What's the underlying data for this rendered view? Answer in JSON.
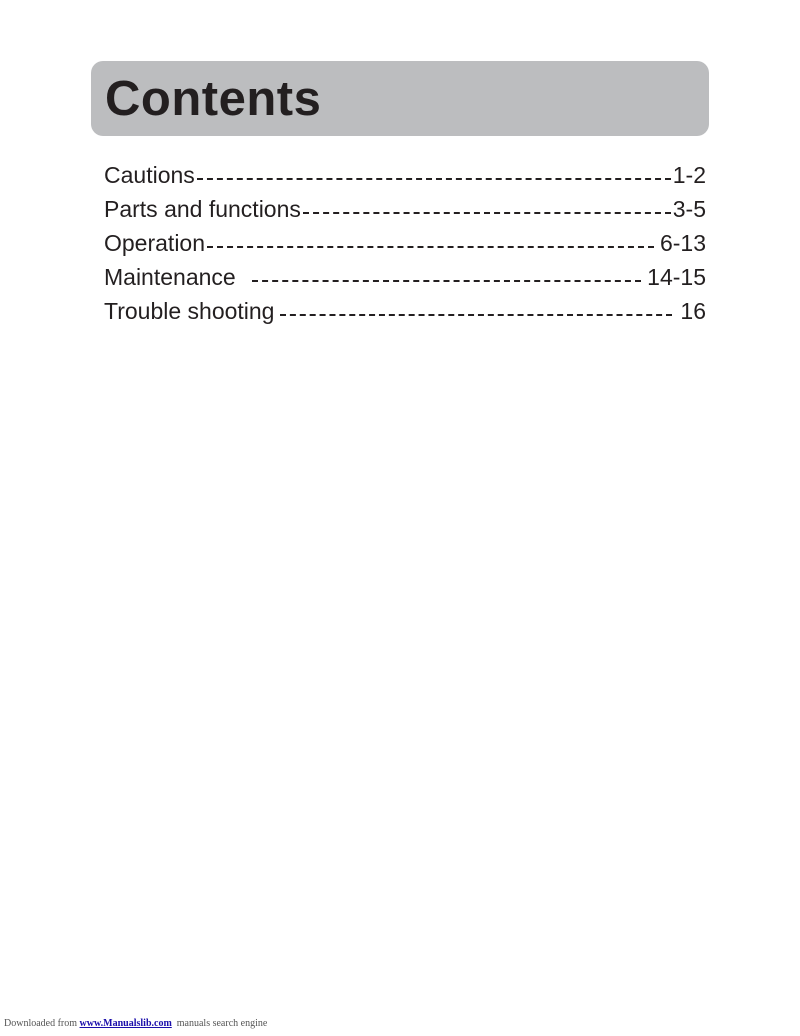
{
  "header": {
    "title": "Contents"
  },
  "toc": {
    "items": [
      {
        "label": "Cautions",
        "pages": "1-2"
      },
      {
        "label": "Parts and functions",
        "pages": "3-5"
      },
      {
        "label": "Operation",
        "pages": "6-13"
      },
      {
        "label": "Maintenance ",
        "pages": "14-15"
      },
      {
        "label": "Trouble shooting",
        "pages": "16"
      }
    ]
  },
  "footer": {
    "prefix": "Downloaded from ",
    "link": "www.Manualslib.com",
    "suffix": "  manuals search engine"
  }
}
